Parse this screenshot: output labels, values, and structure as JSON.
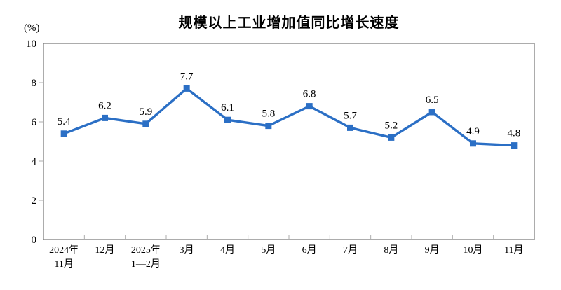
{
  "chart_data": {
    "type": "line",
    "title": "规模以上工业增加值同比增长速度",
    "unit_label": "(%)",
    "categories": [
      [
        "2024年",
        "11月"
      ],
      [
        "12月"
      ],
      [
        "2025年",
        "1—2月"
      ],
      [
        "3月"
      ],
      [
        "4月"
      ],
      [
        "5月"
      ],
      [
        "6月"
      ],
      [
        "7月"
      ],
      [
        "8月"
      ],
      [
        "9月"
      ],
      [
        "10月"
      ],
      [
        "11月"
      ]
    ],
    "values": [
      5.4,
      6.2,
      5.9,
      7.7,
      6.1,
      5.8,
      6.8,
      5.7,
      5.2,
      6.5,
      4.9,
      4.8
    ],
    "data_labels": [
      "5.4",
      "6.2",
      "5.9",
      "7.7",
      "6.1",
      "5.8",
      "6.8",
      "5.7",
      "5.2",
      "6.5",
      "4.9",
      "4.8"
    ],
    "ylim": [
      0,
      10
    ],
    "yticks": [
      0,
      2,
      4,
      6,
      8,
      10
    ],
    "grid": false,
    "legend": "none",
    "marker": "square",
    "colors": {
      "line": "#2B6FC5",
      "marker": "#2B6FC5",
      "axis_border": "#808080",
      "minor_tick": "#ADADAD",
      "text": "#000000",
      "background": "#FFFFFF"
    }
  }
}
